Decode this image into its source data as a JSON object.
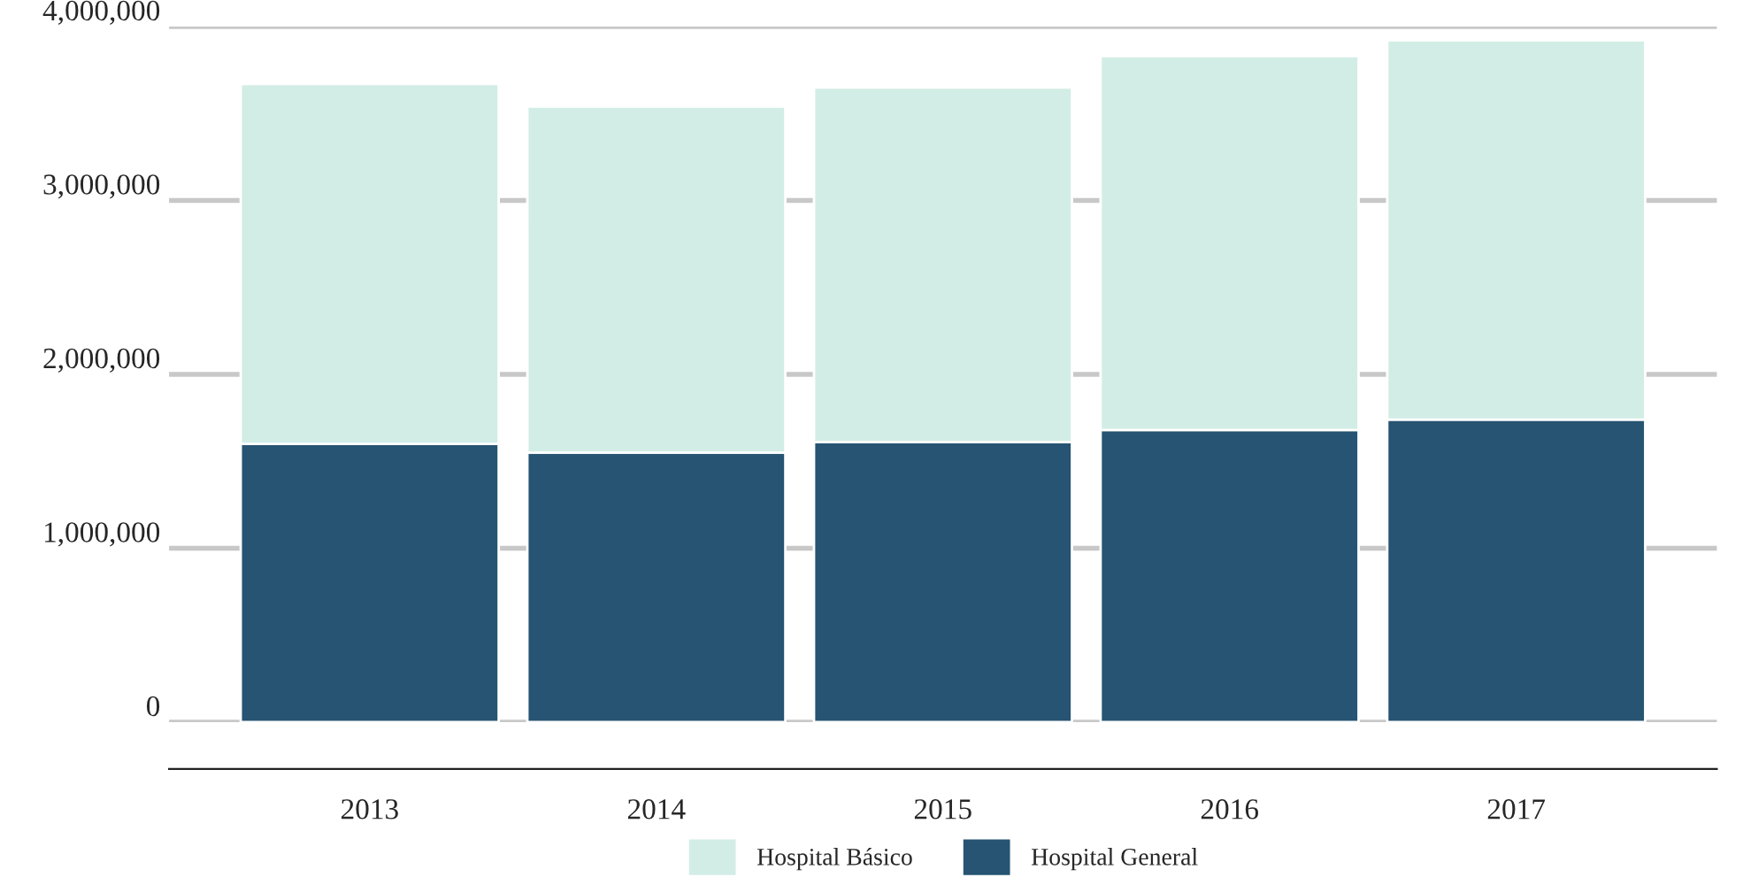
{
  "chart_data": {
    "type": "bar",
    "stacked": true,
    "categories": [
      "2013",
      "2014",
      "2015",
      "2016",
      "2017"
    ],
    "series": [
      {
        "name": "Hospital General",
        "color": "#265472",
        "values": [
          1600000,
          1550000,
          1610000,
          1680000,
          1740000
        ]
      },
      {
        "name": "Hospital Básico",
        "color": "#d2ede5",
        "values": [
          2070000,
          1990000,
          2040000,
          2150000,
          2180000
        ]
      }
    ],
    "ylim": [
      0,
      4000000
    ],
    "yticks": [
      {
        "value": 0,
        "label": "0"
      },
      {
        "value": 1000000,
        "label": "1,000,000"
      },
      {
        "value": 2000000,
        "label": "2,000,000"
      },
      {
        "value": 3000000,
        "label": "3,000,000"
      },
      {
        "value": 4000000,
        "label": "4,000,000"
      }
    ],
    "grid": "y",
    "legend": "bottom"
  }
}
